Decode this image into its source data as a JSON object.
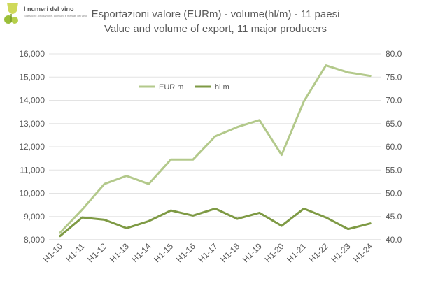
{
  "logo": {
    "title": "I numeri del vino",
    "subtitle": "Statistiche, produzione, consumi e mercati del vino"
  },
  "colors": {
    "eur": "#b3c98b",
    "hl": "#7e9a44",
    "grid": "#e3e3e3",
    "text": "#595959"
  },
  "chart_data": {
    "type": "line",
    "title": "Esportazioni valore (EURm) - volume(hl/m) - 11 paesi",
    "subtitle": "Value and volume of export, 11 major producers",
    "categories": [
      "H1-10",
      "H1-11",
      "H1-12",
      "H1-13",
      "H1-14",
      "H1-15",
      "H1-16",
      "H1-17",
      "H1-18",
      "H1-19",
      "H1-20",
      "H1-21",
      "H1-22",
      "H1-23",
      "H1-24"
    ],
    "series": [
      {
        "name": "EUR m",
        "axis": "left",
        "values": [
          8300,
          9300,
          10400,
          10750,
          10400,
          11450,
          11450,
          12450,
          12850,
          13150,
          11650,
          13950,
          15500,
          15200,
          15050
        ]
      },
      {
        "name": "hl m",
        "axis": "right",
        "values": [
          40.8,
          44.8,
          44.3,
          42.5,
          44.0,
          46.3,
          45.2,
          46.7,
          44.5,
          45.8,
          43.0,
          46.7,
          44.8,
          42.3,
          43.5
        ]
      }
    ],
    "y_left": {
      "min": 8000,
      "max": 16000,
      "step": 1000,
      "tick_labels": [
        "8,000",
        "9,000",
        "10,000",
        "11,000",
        "12,000",
        "13,000",
        "14,000",
        "15,000",
        "16,000"
      ]
    },
    "y_right": {
      "min": 40,
      "max": 80,
      "step": 5,
      "tick_labels": [
        "40.0",
        "45.0",
        "50.0",
        "55.0",
        "60.0",
        "65.0",
        "70.0",
        "75.0",
        "80.0"
      ]
    },
    "grid": true,
    "legend_position": "top-left inside"
  }
}
